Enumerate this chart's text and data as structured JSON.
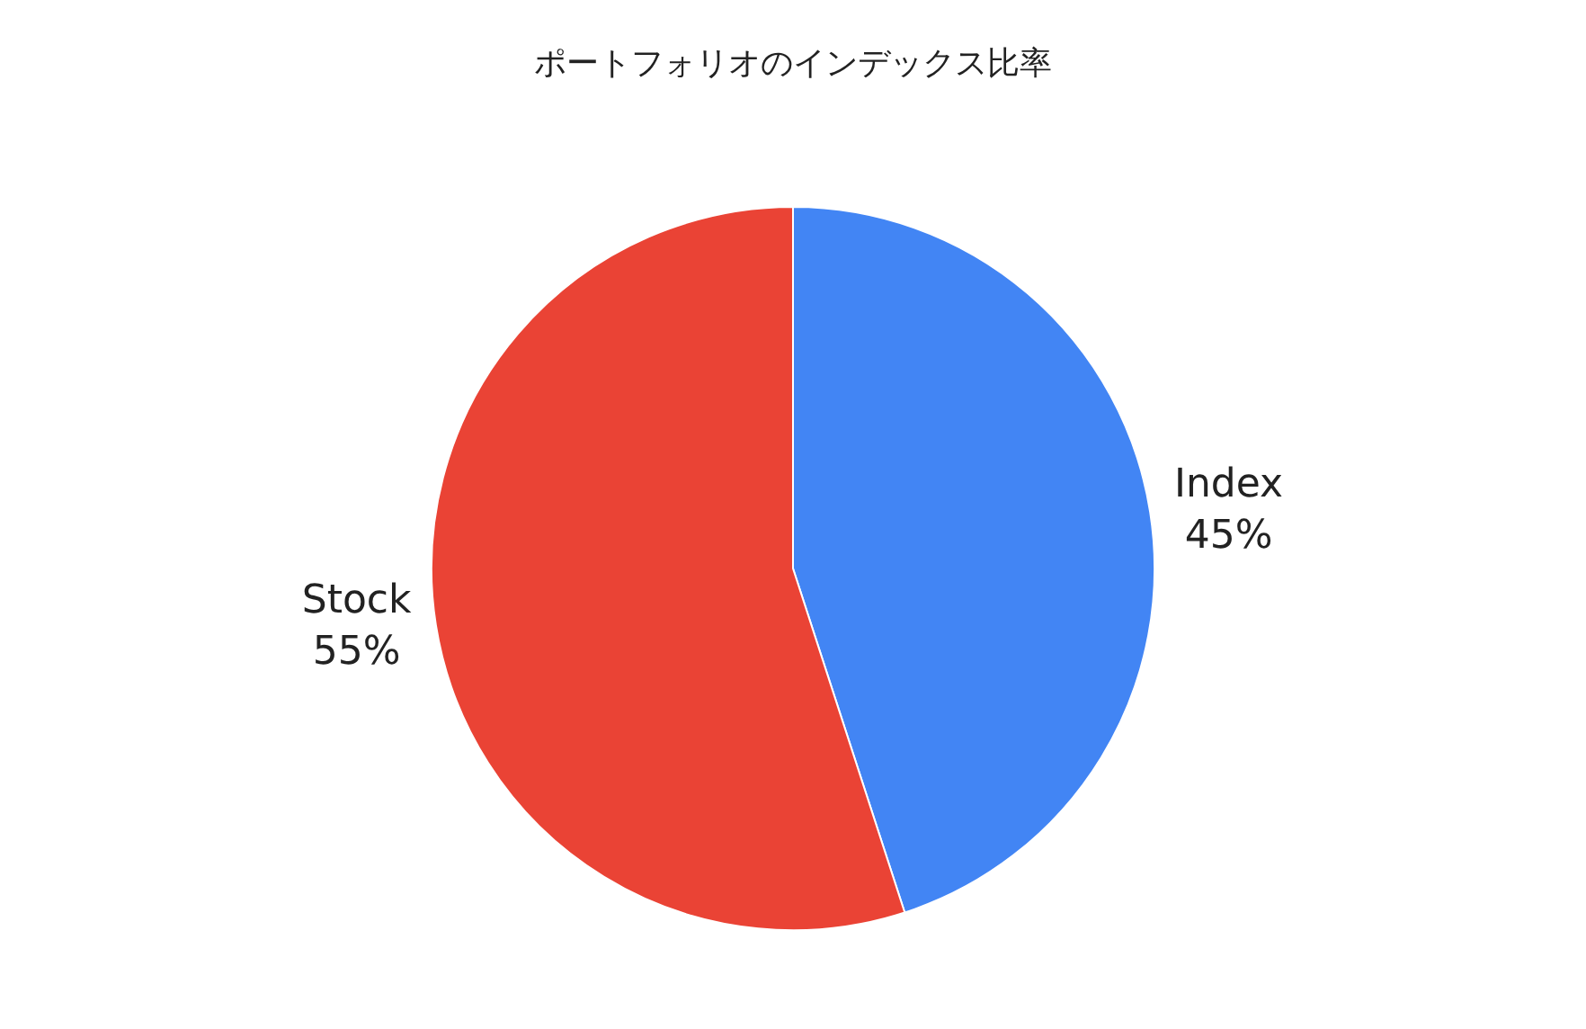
{
  "chart_data": {
    "type": "pie",
    "title": "ポートフォリオのインデックス比率",
    "categories": [
      "Index",
      "Stock"
    ],
    "values": [
      45,
      55
    ],
    "value_labels": [
      "45%",
      "55%"
    ],
    "colors": [
      "#4285f4",
      "#ea4335"
    ],
    "legend": false
  }
}
